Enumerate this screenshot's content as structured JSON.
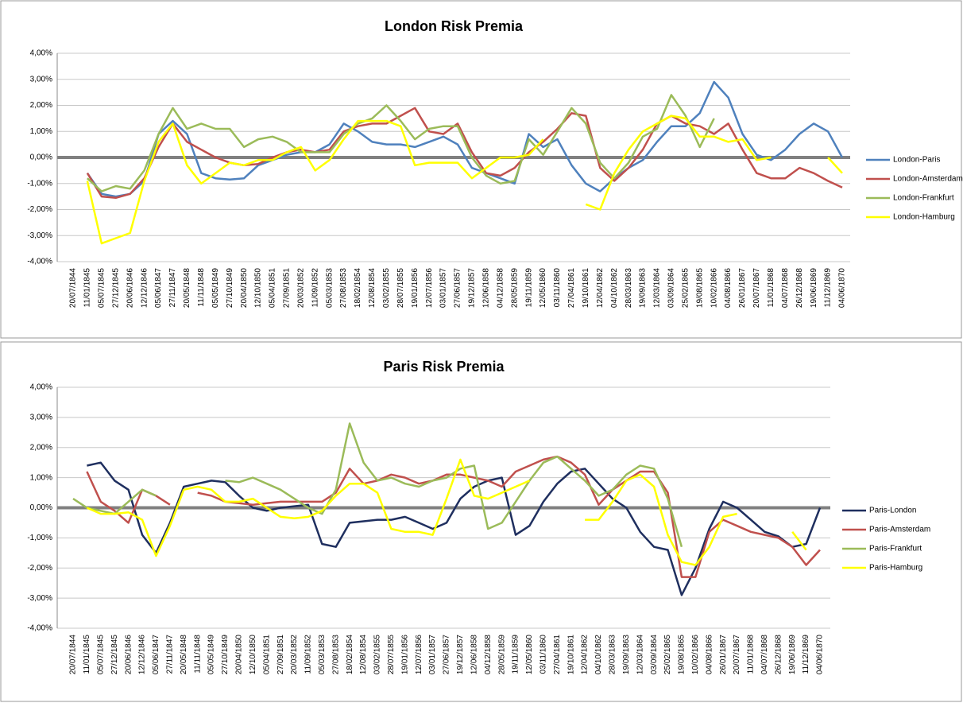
{
  "chart_data": [
    {
      "type": "line",
      "title": "London Risk Premia",
      "categories": [
        "20/07/1844",
        "11/01/1845",
        "05/07/1845",
        "27/12/1845",
        "20/06/1846",
        "12/12/1846",
        "05/06/1847",
        "27/11/1847",
        "20/05/1848",
        "11/11/1848",
        "05/05/1849",
        "27/10/1849",
        "20/04/1850",
        "12/10/1850",
        "05/04/1851",
        "27/09/1851",
        "20/03/1852",
        "11/09/1852",
        "05/03/1853",
        "27/08/1853",
        "18/02/1854",
        "12/08/1854",
        "03/02/1855",
        "28/07/1855",
        "19/01/1856",
        "12/07/1856",
        "03/01/1857",
        "27/06/1857",
        "19/12/1857",
        "12/06/1858",
        "04/12/1858",
        "28/05/1859",
        "19/11/1859",
        "12/05/1860",
        "03/11/1860",
        "27/04/1861",
        "19/10/1861",
        "12/04/1862",
        "04/10/1862",
        "28/03/1863",
        "19/09/1863",
        "12/03/1864",
        "03/09/1864",
        "25/02/1865",
        "19/08/1865",
        "10/02/1866",
        "04/08/1866",
        "26/01/1867",
        "20/07/1867",
        "11/01/1868",
        "04/07/1868",
        "26/12/1868",
        "19/06/1869",
        "11/12/1869",
        "04/06/1870"
      ],
      "series": [
        {
          "name": "London-Paris",
          "color": "#4f81bd",
          "values": [
            null,
            -0.6,
            -1.4,
            -1.5,
            -1.4,
            -0.9,
            0.9,
            1.4,
            0.9,
            -0.6,
            -0.8,
            -0.85,
            -0.8,
            -0.3,
            -0.1,
            0.1,
            0.2,
            0.2,
            0.5,
            1.3,
            1.0,
            0.6,
            0.5,
            0.5,
            0.4,
            0.6,
            0.8,
            0.5,
            -0.4,
            -0.6,
            -0.8,
            -1.0,
            0.9,
            0.4,
            0.7,
            -0.3,
            -1.0,
            -1.3,
            -0.8,
            -0.4,
            -0.1,
            0.6,
            1.2,
            1.2,
            1.7,
            2.9,
            2.3,
            0.9,
            0.1,
            -0.1,
            0.3,
            0.9,
            1.3,
            1.0,
            0.0
          ]
        },
        {
          "name": "London-Amsterdam",
          "color": "#c0504d",
          "values": [
            null,
            -0.6,
            -1.5,
            -1.55,
            -1.4,
            -0.8,
            0.4,
            1.3,
            0.6,
            0.3,
            0.0,
            -0.2,
            -0.3,
            -0.25,
            0.0,
            0.2,
            0.3,
            0.2,
            0.3,
            1.0,
            1.2,
            1.3,
            1.3,
            1.6,
            1.9,
            1.0,
            0.9,
            1.3,
            0.2,
            -0.6,
            -0.7,
            -0.4,
            0.2,
            0.6,
            1.1,
            1.7,
            1.6,
            -0.4,
            -0.9,
            -0.4,
            0.3,
            1.3,
            1.6,
            1.3,
            1.2,
            0.9,
            1.3,
            0.3,
            -0.6,
            -0.8,
            -0.8,
            -0.4,
            -0.6,
            -0.9,
            -1.15
          ]
        },
        {
          "name": "London-Frankfurt",
          "color": "#9bbb59",
          "values": [
            null,
            -0.8,
            -1.3,
            -1.1,
            -1.2,
            -0.5,
            0.9,
            1.9,
            1.1,
            1.3,
            1.1,
            1.1,
            0.4,
            0.7,
            0.8,
            0.6,
            0.2,
            0.2,
            0.2,
            0.9,
            1.3,
            1.5,
            2.0,
            1.4,
            0.7,
            1.1,
            1.2,
            1.2,
            0.0,
            -0.7,
            -1.0,
            -0.9,
            0.7,
            0.1,
            1.0,
            1.9,
            1.3,
            -0.2,
            -0.8,
            -0.2,
            0.8,
            1.1,
            2.4,
            1.6,
            0.4,
            1.5,
            null,
            null,
            null,
            null,
            null,
            null,
            null,
            null,
            null
          ]
        },
        {
          "name": "London-Hamburg",
          "color": "#ffff00",
          "values": [
            null,
            -0.9,
            -3.3,
            -3.1,
            -2.9,
            -0.9,
            0.6,
            1.3,
            -0.3,
            -1.0,
            -0.6,
            -0.2,
            -0.3,
            -0.1,
            -0.1,
            0.2,
            0.4,
            -0.5,
            -0.1,
            0.7,
            1.4,
            1.4,
            1.4,
            1.2,
            -0.3,
            -0.2,
            -0.2,
            -0.2,
            -0.8,
            -0.4,
            0.0,
            0.0,
            0.1,
            0.7,
            null,
            null,
            -1.8,
            -2.0,
            -0.6,
            0.3,
            1.0,
            1.3,
            1.6,
            1.5,
            0.8,
            0.8,
            0.6,
            0.7,
            -0.1,
            0.0,
            null,
            null,
            null,
            0.0,
            -0.6
          ]
        }
      ],
      "ylim": [
        -4,
        4
      ],
      "yticks": [
        {
          "value": -4,
          "label": "-4,00%"
        },
        {
          "value": -3,
          "label": "-3,00%"
        },
        {
          "value": -2,
          "label": "-2,00%"
        },
        {
          "value": -1,
          "label": "-1,00%"
        },
        {
          "value": 0,
          "label": "0,00%"
        },
        {
          "value": 1,
          "label": "1,00%"
        },
        {
          "value": 2,
          "label": "2,00%"
        },
        {
          "value": 3,
          "label": "3,00%"
        },
        {
          "value": 4,
          "label": "4,00%"
        }
      ],
      "grid": true,
      "legend": "right"
    },
    {
      "type": "line",
      "title": "Paris Risk Premia",
      "categories": [
        "20/07/1844",
        "11/01/1845",
        "05/07/1845",
        "27/12/1845",
        "20/06/1846",
        "12/12/1846",
        "05/06/1847",
        "27/11/1847",
        "20/05/1848",
        "11/11/1848",
        "05/05/1849",
        "27/10/1849",
        "20/04/1850",
        "12/10/1850",
        "05/04/1851",
        "27/09/1851",
        "20/03/1852",
        "11/09/1852",
        "05/03/1853",
        "27/08/1853",
        "18/02/1854",
        "12/08/1854",
        "03/02/1855",
        "28/07/1855",
        "19/01/1856",
        "12/07/1856",
        "03/01/1857",
        "27/06/1857",
        "19/12/1857",
        "12/06/1858",
        "04/12/1858",
        "28/05/1859",
        "19/11/1859",
        "12/05/1860",
        "03/11/1860",
        "27/04/1861",
        "19/10/1861",
        "12/04/1862",
        "04/10/1862",
        "28/03/1863",
        "19/09/1863",
        "12/03/1864",
        "03/09/1864",
        "25/02/1865",
        "19/08/1865",
        "10/02/1866",
        "04/08/1866",
        "26/01/1867",
        "20/07/1867",
        "11/01/1868",
        "04/07/1868",
        "26/12/1868",
        "19/06/1869",
        "11/12/1869",
        "04/06/1870"
      ],
      "series": [
        {
          "name": "Paris-London",
          "color": "#1f2f5f",
          "values": [
            null,
            1.4,
            1.5,
            0.9,
            0.6,
            -0.9,
            -1.5,
            -0.5,
            0.7,
            0.8,
            0.9,
            0.85,
            0.4,
            0.0,
            -0.1,
            0.0,
            0.05,
            0.1,
            -1.2,
            -1.3,
            -0.5,
            -0.45,
            -0.4,
            -0.4,
            -0.3,
            -0.5,
            -0.7,
            -0.5,
            0.3,
            0.7,
            0.9,
            1.0,
            -0.9,
            -0.6,
            0.2,
            0.8,
            1.2,
            1.3,
            0.8,
            0.3,
            0.0,
            -0.8,
            -1.3,
            -1.4,
            -2.9,
            -2.0,
            -0.7,
            0.2,
            0.0,
            -0.4,
            -0.8,
            -0.95,
            -1.3,
            -1.2,
            0.0
          ]
        },
        {
          "name": "Paris-Amsterdam",
          "color": "#c0504d",
          "values": [
            null,
            1.2,
            0.2,
            -0.1,
            -0.5,
            0.6,
            0.4,
            0.1,
            null,
            0.5,
            0.4,
            0.2,
            0.15,
            0.1,
            0.15,
            0.2,
            0.2,
            0.2,
            0.2,
            0.5,
            1.3,
            0.8,
            0.9,
            1.1,
            1.0,
            0.8,
            0.9,
            1.1,
            1.1,
            1.0,
            0.9,
            0.7,
            1.2,
            1.4,
            1.6,
            1.7,
            1.5,
            1.1,
            0.1,
            0.6,
            0.9,
            1.2,
            1.2,
            0.5,
            -2.3,
            -2.3,
            -0.8,
            -0.4,
            -0.6,
            -0.8,
            -0.9,
            -1.0,
            -1.3,
            -1.9,
            -1.4
          ]
        },
        {
          "name": "Paris-Frankfurt",
          "color": "#9bbb59",
          "values": [
            0.3,
            0.0,
            -0.1,
            -0.2,
            0.2,
            0.6,
            0.4,
            null,
            null,
            null,
            null,
            0.9,
            0.85,
            1.0,
            0.8,
            0.6,
            0.3,
            0.0,
            -0.2,
            0.6,
            2.8,
            1.5,
            0.9,
            1.0,
            0.8,
            0.7,
            0.9,
            1.0,
            1.3,
            1.4,
            -0.7,
            -0.5,
            0.2,
            0.9,
            1.5,
            1.7,
            1.3,
            0.9,
            0.4,
            0.6,
            1.1,
            1.4,
            1.3,
            0.3,
            -1.3,
            null,
            null,
            null,
            null,
            null,
            null,
            null,
            null,
            null,
            null
          ]
        },
        {
          "name": "Paris-Hamburg",
          "color": "#ffff00",
          "values": [
            null,
            0.0,
            -0.2,
            -0.2,
            -0.15,
            -0.4,
            -1.6,
            -0.6,
            0.6,
            0.7,
            0.6,
            0.2,
            0.2,
            0.3,
            0.0,
            -0.3,
            -0.35,
            -0.3,
            -0.1,
            0.4,
            0.8,
            0.8,
            0.5,
            -0.7,
            -0.8,
            -0.8,
            -0.9,
            0.3,
            1.6,
            0.4,
            0.3,
            0.5,
            0.7,
            0.9,
            null,
            null,
            null,
            -0.4,
            -0.4,
            0.2,
            0.9,
            1.1,
            0.7,
            -0.9,
            -1.8,
            -1.9,
            -1.3,
            -0.3,
            -0.2,
            null,
            null,
            null,
            -0.8,
            -1.4,
            null
          ]
        }
      ],
      "ylim": [
        -4,
        4
      ],
      "yticks": [
        {
          "value": -4,
          "label": "-4,00%"
        },
        {
          "value": -3,
          "label": "-3,00%"
        },
        {
          "value": -2,
          "label": "-2,00%"
        },
        {
          "value": -1,
          "label": "-1,00%"
        },
        {
          "value": 0,
          "label": "0,00%"
        },
        {
          "value": 1,
          "label": "1,00%"
        },
        {
          "value": 2,
          "label": "2,00%"
        },
        {
          "value": 3,
          "label": "3,00%"
        },
        {
          "value": 4,
          "label": "4,00%"
        }
      ],
      "grid": true,
      "legend": "right"
    }
  ]
}
